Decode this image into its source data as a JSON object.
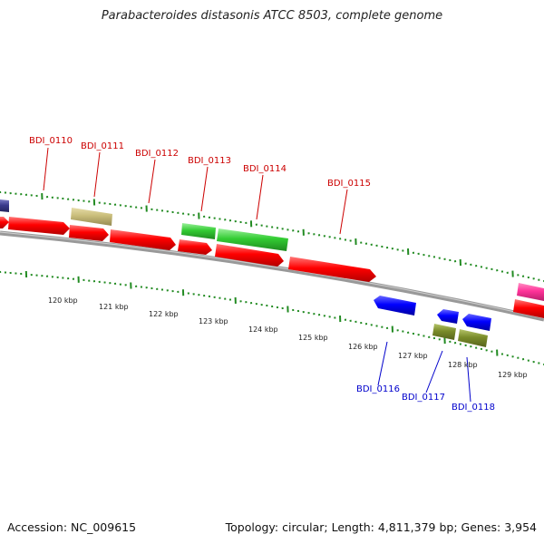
{
  "title": "Parabacteroides distasonis ATCC 8503, complete genome",
  "accession_text": "Accession: NC_009615",
  "topology_text": "Topology: circular; Length: 4,811,379 bp; Genes: 3,954",
  "scale_labels": [
    "120 kbp",
    "121 kbp",
    "122 kbp",
    "123 kbp",
    "124 kbp",
    "125 kbp",
    "126 kbp",
    "127 kbp",
    "128 kbp",
    "129 kbp"
  ],
  "colors": {
    "forward_label": "#cc0000",
    "reverse_label": "#0000cc",
    "tick": "#228b22",
    "backbone": "#888888",
    "red": "#ff0000",
    "green": "#33cc33",
    "blue": "#0000ff",
    "olive": "#7a8c2a",
    "khaki": "#c9bd7a",
    "navy": "#3a3a8c",
    "magenta": "#ff3399"
  },
  "forward_gene_labels": [
    "BDI_0110",
    "BDI_0111",
    "BDI_0112",
    "BDI_0113",
    "BDI_0114",
    "BDI_0115"
  ],
  "reverse_gene_labels": [
    "BDI_0116",
    "BDI_0117",
    "BDI_0118"
  ]
}
